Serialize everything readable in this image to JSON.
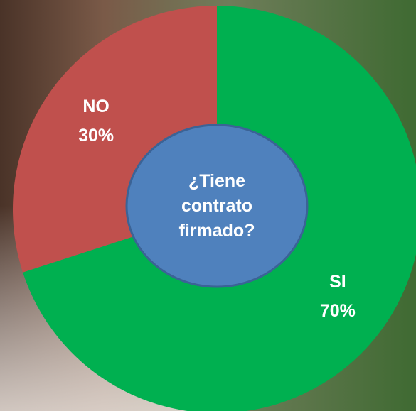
{
  "chart_data": {
    "type": "pie",
    "title": "¿Tiene contrato firmado?",
    "categories": [
      "SI",
      "NO"
    ],
    "values": [
      70,
      30
    ],
    "value_labels": [
      "70%",
      "30%"
    ],
    "colors": [
      "#00b050",
      "#c0504d"
    ]
  }
}
